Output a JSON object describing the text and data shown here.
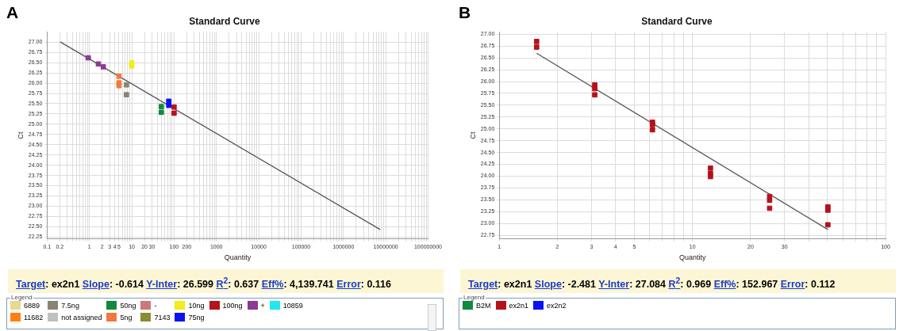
{
  "chart_data": [
    {
      "type": "scatter",
      "title": "Standard Curve",
      "xlabel": "Quantity",
      "ylabel": "Ct",
      "log": "x",
      "grid": true,
      "marker": "square",
      "legend": "bottom",
      "legend_title": "Legend",
      "annotations": [
        "A",
        "Target: ex2n1 Slope: -0.614 Y-Inter: 26.599 R$^{2}$: 0.637 Eff%: 4,139.741 Error: 0.116"
      ],
      "xlim": [
        0.1,
        100000000
      ],
      "ylim": [
        22.2,
        27.25
      ],
      "xticks": [
        0.1,
        0.2,
        {
          "value": 0.3,
          "label": null
        },
        {
          "value": 0.4,
          "label": null
        },
        {
          "value": 0.5,
          "label": null
        },
        {
          "value": 0.6,
          "label": null
        },
        {
          "value": 0.7,
          "label": null
        },
        {
          "value": 0.8,
          "label": null
        },
        {
          "value": 0.9,
          "label": null
        },
        1,
        2,
        3,
        4,
        5,
        {
          "value": 6,
          "label": null
        },
        {
          "value": 7,
          "label": null
        },
        {
          "value": 8,
          "label": null
        },
        {
          "value": 9,
          "label": null
        },
        10,
        20,
        30,
        {
          "value": 40,
          "label": null
        },
        {
          "value": 50,
          "label": null
        },
        {
          "value": 60,
          "label": null
        },
        {
          "value": 70,
          "label": null
        },
        {
          "value": 80,
          "label": null
        },
        {
          "value": 90,
          "label": null
        },
        100,
        200,
        {
          "value": 300,
          "label": null
        },
        {
          "value": 400,
          "label": null
        },
        {
          "value": 500,
          "label": null
        },
        {
          "value": 600,
          "label": null
        },
        {
          "value": 700,
          "label": null
        },
        {
          "value": 800,
          "label": null
        },
        {
          "value": 900,
          "label": null
        },
        1000,
        {
          "value": 2000,
          "label": null
        },
        {
          "value": 3000,
          "label": null
        },
        {
          "value": 4000,
          "label": null
        },
        {
          "value": 5000,
          "label": null
        },
        {
          "value": 6000,
          "label": null
        },
        {
          "value": 7000,
          "label": null
        },
        {
          "value": 8000,
          "label": null
        },
        {
          "value": 9000,
          "label": null
        },
        10000,
        {
          "value": 20000,
          "label": null
        },
        {
          "value": 30000,
          "label": null
        },
        {
          "value": 40000,
          "label": null
        },
        {
          "value": 50000,
          "label": null
        },
        {
          "value": 60000,
          "label": null
        },
        {
          "value": 70000,
          "label": null
        },
        {
          "value": 80000,
          "label": null
        },
        {
          "value": 90000,
          "label": null
        },
        100000,
        {
          "value": 200000,
          "label": null
        },
        {
          "value": 300000,
          "label": null
        },
        {
          "value": 400000,
          "label": null
        },
        {
          "value": 500000,
          "label": null
        },
        {
          "value": 600000,
          "label": null
        },
        {
          "value": 700000,
          "label": null
        },
        {
          "value": 800000,
          "label": null
        },
        {
          "value": 900000,
          "label": null
        },
        1000000,
        {
          "value": 2000000,
          "label": null
        },
        {
          "value": 3000000,
          "label": null
        },
        {
          "value": 4000000,
          "label": null
        },
        {
          "value": 5000000,
          "label": null
        },
        {
          "value": 6000000,
          "label": null
        },
        {
          "value": 7000000,
          "label": null
        },
        {
          "value": 8000000,
          "label": null
        },
        {
          "value": 9000000,
          "label": null
        },
        10000000,
        {
          "value": 20000000,
          "label": null
        },
        {
          "value": 30000000,
          "label": null
        },
        {
          "value": 40000000,
          "label": null
        },
        {
          "value": 50000000,
          "label": null
        },
        {
          "value": 60000000,
          "label": null
        },
        {
          "value": 70000000,
          "label": null
        },
        {
          "value": 80000000,
          "label": null
        },
        {
          "value": 90000000,
          "label": null
        },
        100000000
      ],
      "yticks": [
        {
          "value": 22.25,
          "label": "22.25"
        },
        {
          "value": 22.5,
          "label": "22.50"
        },
        {
          "value": 22.75,
          "label": "22.75"
        },
        {
          "value": 23,
          "label": "23.00"
        },
        {
          "value": 23.25,
          "label": "23.25"
        },
        {
          "value": 23.5,
          "label": "23.50"
        },
        {
          "value": 23.75,
          "label": "23.75"
        },
        {
          "value": 24,
          "label": "24.00"
        },
        {
          "value": 24.25,
          "label": "24.25"
        },
        {
          "value": 24.5,
          "label": "24.50"
        },
        {
          "value": 24.75,
          "label": "24.75"
        },
        {
          "value": 25,
          "label": "25.00"
        },
        {
          "value": 25.25,
          "label": "25.25"
        },
        {
          "value": 25.5,
          "label": "25.50"
        },
        {
          "value": 25.75,
          "label": "25.75"
        },
        {
          "value": 26,
          "label": "26.00"
        },
        {
          "value": 26.25,
          "label": "26.25"
        },
        {
          "value": 26.5,
          "label": "26.50"
        },
        {
          "value": 26.75,
          "label": "26.75"
        },
        {
          "value": 27,
          "label": "27.00"
        }
      ],
      "series": [
        {
          "name": "6889",
          "color": "#e8d890"
        },
        {
          "name": "7.5ng",
          "color": "#8a8470",
          "x": [
            7.5,
            7.5
          ],
          "values": [
            25.96,
            25.72
          ]
        },
        {
          "name": "50ng",
          "color": "#108a3c",
          "x": [
            50,
            50
          ],
          "values": [
            25.43,
            25.29
          ]
        },
        {
          "name": "-",
          "color": "#d07878"
        },
        {
          "name": "10ng",
          "color": "#f2ec1a",
          "x": [
            10,
            10
          ],
          "values": [
            26.5,
            26.42
          ]
        },
        {
          "name": "100ng",
          "color": "#b5121b",
          "x": [
            100,
            100
          ],
          "values": [
            25.42,
            25.27
          ]
        },
        {
          "name": "+",
          "color": "#8b3a96",
          "x": [
            0.94,
            1.63,
            2.13
          ],
          "values": [
            26.62,
            26.47,
            26.4
          ]
        },
        {
          "name": "10859",
          "color": "#20e8f0"
        },
        {
          "name": "11682",
          "color": "#ff8010"
        },
        {
          "name": "not assigned",
          "color": "#c0c0c0"
        },
        {
          "name": "5ng",
          "color": "#f07a3e",
          "x": [
            5,
            5,
            5
          ],
          "values": [
            26.17,
            26.01,
            25.94
          ]
        },
        {
          "name": "7143",
          "color": "#8c8c30"
        },
        {
          "name": "75ng",
          "color": "#0b12f0",
          "x": [
            75,
            75
          ],
          "values": [
            25.56,
            25.46
          ]
        },
        {
          "type": "line",
          "marker": "none",
          "color": "#555555",
          "x": [
            0.204,
            7400000
          ],
          "values": [
            27.01,
            22.43
          ]
        }
      ]
    },
    {
      "type": "scatter",
      "title": "Standard Curve",
      "xlabel": "Quantity",
      "ylabel": "Ct",
      "log": "x",
      "grid": true,
      "marker": "square",
      "legend": "bottom",
      "legend_title": "Legend",
      "annotations": [
        "B",
        "Target: ex2n1 Slope: -2.481 Y-Inter: 27.084 R$^{2}$: 0.969 Eff%: 152.967 Error: 0.112"
      ],
      "xlim": [
        1,
        100
      ],
      "ylim": [
        22.67,
        27.05
      ],
      "xticks": [
        1,
        2,
        3,
        4,
        5,
        {
          "value": 6,
          "label": null
        },
        {
          "value": 7,
          "label": null
        },
        {
          "value": 8,
          "label": null
        },
        {
          "value": 9,
          "label": null
        },
        10,
        20,
        30,
        {
          "value": 40,
          "label": null
        },
        {
          "value": 50,
          "label": null
        },
        {
          "value": 60,
          "label": null
        },
        {
          "value": 70,
          "label": null
        },
        {
          "value": 80,
          "label": null
        },
        {
          "value": 90,
          "label": null
        },
        100
      ],
      "yticks": [
        {
          "value": 22.75,
          "label": "22.75"
        },
        {
          "value": 23,
          "label": "23.00"
        },
        {
          "value": 23.25,
          "label": "23.25"
        },
        {
          "value": 23.5,
          "label": "23.50"
        },
        {
          "value": 23.75,
          "label": "23.75"
        },
        {
          "value": 24,
          "label": "24.00"
        },
        {
          "value": 24.25,
          "label": "24.25"
        },
        {
          "value": 24.5,
          "label": "24.50"
        },
        {
          "value": 24.75,
          "label": "24.75"
        },
        {
          "value": 25,
          "label": "25.00"
        },
        {
          "value": 25.25,
          "label": "25.25"
        },
        {
          "value": 25.5,
          "label": "25.50"
        },
        {
          "value": 25.75,
          "label": "25.75"
        },
        {
          "value": 26,
          "label": "26.00"
        },
        {
          "value": 26.25,
          "label": "26.25"
        },
        {
          "value": 26.5,
          "label": "26.50"
        },
        {
          "value": 26.75,
          "label": "26.75"
        },
        {
          "value": 27,
          "label": "27.00"
        }
      ],
      "series": [
        {
          "name": "B2M",
          "color": "#108a3c"
        },
        {
          "name": "ex2n1",
          "color": "#b5121b",
          "x": [
            1.56,
            1.56,
            3.12,
            3.12,
            3.12,
            6.21,
            6.21,
            6.21,
            12.4,
            12.4,
            12.4,
            25.1,
            25.1,
            25.1,
            50.3,
            50.3,
            50.3
          ],
          "values": [
            26.85,
            26.73,
            25.93,
            25.85,
            25.72,
            25.14,
            25.09,
            24.98,
            24.17,
            24.06,
            23.99,
            23.57,
            23.49,
            23.32,
            23.35,
            23.28,
            22.97
          ]
        },
        {
          "name": "ex2n2",
          "color": "#0b12f0"
        },
        {
          "type": "line",
          "marker": "none",
          "color": "#555555",
          "x": [
            1.56,
            50.3
          ],
          "values": [
            26.6,
            22.87
          ]
        }
      ]
    }
  ]
}
